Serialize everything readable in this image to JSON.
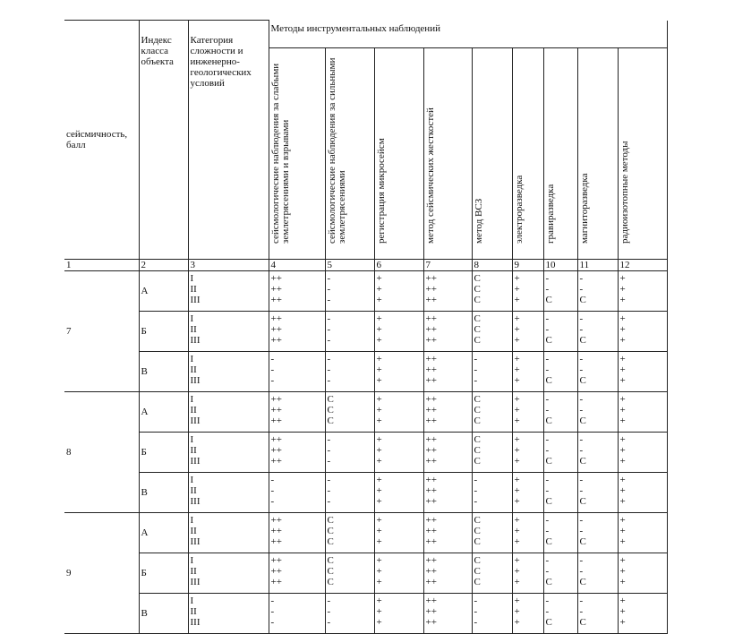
{
  "header": {
    "seismicity": "сейсмичность, балл",
    "index": "Индекс класса объекта",
    "category": "Категория сложности и инженерно-геологических условий",
    "methods": "Методы инструментальных наблюдений",
    "method_columns": [
      "сейсмологические наблюдения за слабыми землетрясениями и взрывами",
      "сейсмологические наблюдения за сильными землетрясениями",
      "регистрация микросейсм",
      "метод сейсмических жесткостей",
      "метод ВСЗ",
      "электроразведка",
      "гравиразведка",
      "магниторазведка",
      "радиоизотопные методы"
    ]
  },
  "column_numbers": [
    "1",
    "2",
    "3",
    "4",
    "5",
    "6",
    "7",
    "8",
    "9",
    "10",
    "11",
    "12"
  ],
  "groups": [
    {
      "seismicity": "7",
      "classes": [
        {
          "index": "А",
          "rows": [
            {
              "category": "I",
              "values": [
                "++",
                "-",
                "+",
                "++",
                "С",
                "+",
                "-",
                "-",
                "+"
              ]
            },
            {
              "category": "II",
              "values": [
                "++",
                "-",
                "+",
                "++",
                "С",
                "+",
                "-",
                "-",
                "+"
              ]
            },
            {
              "category": "III",
              "values": [
                "++",
                "-",
                "+",
                "++",
                "С",
                "+",
                "С",
                "С",
                "+"
              ]
            }
          ]
        },
        {
          "index": "Б",
          "rows": [
            {
              "category": "I",
              "values": [
                "++",
                "-",
                "+",
                "++",
                "С",
                "+",
                "-",
                "-",
                "+"
              ]
            },
            {
              "category": "II",
              "values": [
                "++",
                "-",
                "+",
                "++",
                "С",
                "+",
                "-",
                "-",
                "+"
              ]
            },
            {
              "category": "III",
              "values": [
                "++",
                "-",
                "+",
                "++",
                "С",
                "+",
                "С",
                "С",
                "+"
              ]
            }
          ]
        },
        {
          "index": "В",
          "rows": [
            {
              "category": "I",
              "values": [
                "-",
                "-",
                "+",
                "++",
                "-",
                "+",
                "-",
                "-",
                "+"
              ]
            },
            {
              "category": "II",
              "values": [
                "-",
                "-",
                "+",
                "++",
                "-",
                "+",
                "-",
                "-",
                "+"
              ]
            },
            {
              "category": "III",
              "values": [
                "-",
                "-",
                "+",
                "++",
                "-",
                "+",
                "С",
                "С",
                "+"
              ]
            }
          ]
        }
      ]
    },
    {
      "seismicity": "8",
      "classes": [
        {
          "index": "А",
          "rows": [
            {
              "category": "I",
              "values": [
                "++",
                "С",
                "+",
                "++",
                "С",
                "+",
                "-",
                "-",
                "+"
              ]
            },
            {
              "category": "II",
              "values": [
                "++",
                "С",
                "+",
                "++",
                "С",
                "+",
                "-",
                "-",
                "+"
              ]
            },
            {
              "category": "III",
              "values": [
                "++",
                "С",
                "+",
                "++",
                "С",
                "+",
                "С",
                "С",
                "+"
              ]
            }
          ]
        },
        {
          "index": "Б",
          "rows": [
            {
              "category": "I",
              "values": [
                "++",
                "-",
                "+",
                "++",
                "С",
                "+",
                "-",
                "-",
                "+"
              ]
            },
            {
              "category": "II",
              "values": [
                "++",
                "-",
                "+",
                "++",
                "С",
                "+",
                "-",
                "-",
                "+"
              ]
            },
            {
              "category": "III",
              "values": [
                "++",
                "-",
                "+",
                "++",
                "С",
                "+",
                "С",
                "С",
                "+"
              ]
            }
          ]
        },
        {
          "index": "В",
          "rows": [
            {
              "category": "I",
              "values": [
                "-",
                "-",
                "+",
                "++",
                "-",
                "+",
                "-",
                "-",
                "+"
              ]
            },
            {
              "category": "II",
              "values": [
                "-",
                "-",
                "+",
                "++",
                "-",
                "+",
                "-",
                "-",
                "+"
              ]
            },
            {
              "category": "III",
              "values": [
                "-",
                "-",
                "+",
                "++",
                "-",
                "+",
                "С",
                "С",
                "+"
              ]
            }
          ]
        }
      ]
    },
    {
      "seismicity": "9",
      "classes": [
        {
          "index": "А",
          "rows": [
            {
              "category": "I",
              "values": [
                "++",
                "С",
                "+",
                "++",
                "С",
                "+",
                "-",
                "-",
                "+"
              ]
            },
            {
              "category": "II",
              "values": [
                "++",
                "С",
                "+",
                "++",
                "С",
                "+",
                "-",
                "-",
                "+"
              ]
            },
            {
              "category": "III",
              "values": [
                "++",
                "С",
                "+",
                "++",
                "С",
                "+",
                "С",
                "С",
                "+"
              ]
            }
          ]
        },
        {
          "index": "Б",
          "rows": [
            {
              "category": "I",
              "values": [
                "++",
                "С",
                "+",
                "++",
                "С",
                "+",
                "-",
                "-",
                "+"
              ]
            },
            {
              "category": "II",
              "values": [
                "++",
                "С",
                "+",
                "++",
                "С",
                "+",
                "-",
                "-",
                "+"
              ]
            },
            {
              "category": "III",
              "values": [
                "++",
                "С",
                "+",
                "++",
                "С",
                "+",
                "С",
                "С",
                "+"
              ]
            }
          ]
        },
        {
          "index": "В",
          "rows": [
            {
              "category": "I",
              "values": [
                "-",
                "-",
                "+",
                "++",
                "-",
                "+",
                "-",
                "-",
                "+"
              ]
            },
            {
              "category": "II",
              "values": [
                "-",
                "-",
                "+",
                "++",
                "-",
                "+",
                "-",
                "-",
                "+"
              ]
            },
            {
              "category": "III",
              "values": [
                "-",
                "-",
                "+",
                "++",
                "-",
                "+",
                "С",
                "С",
                "+"
              ]
            }
          ]
        }
      ]
    }
  ]
}
